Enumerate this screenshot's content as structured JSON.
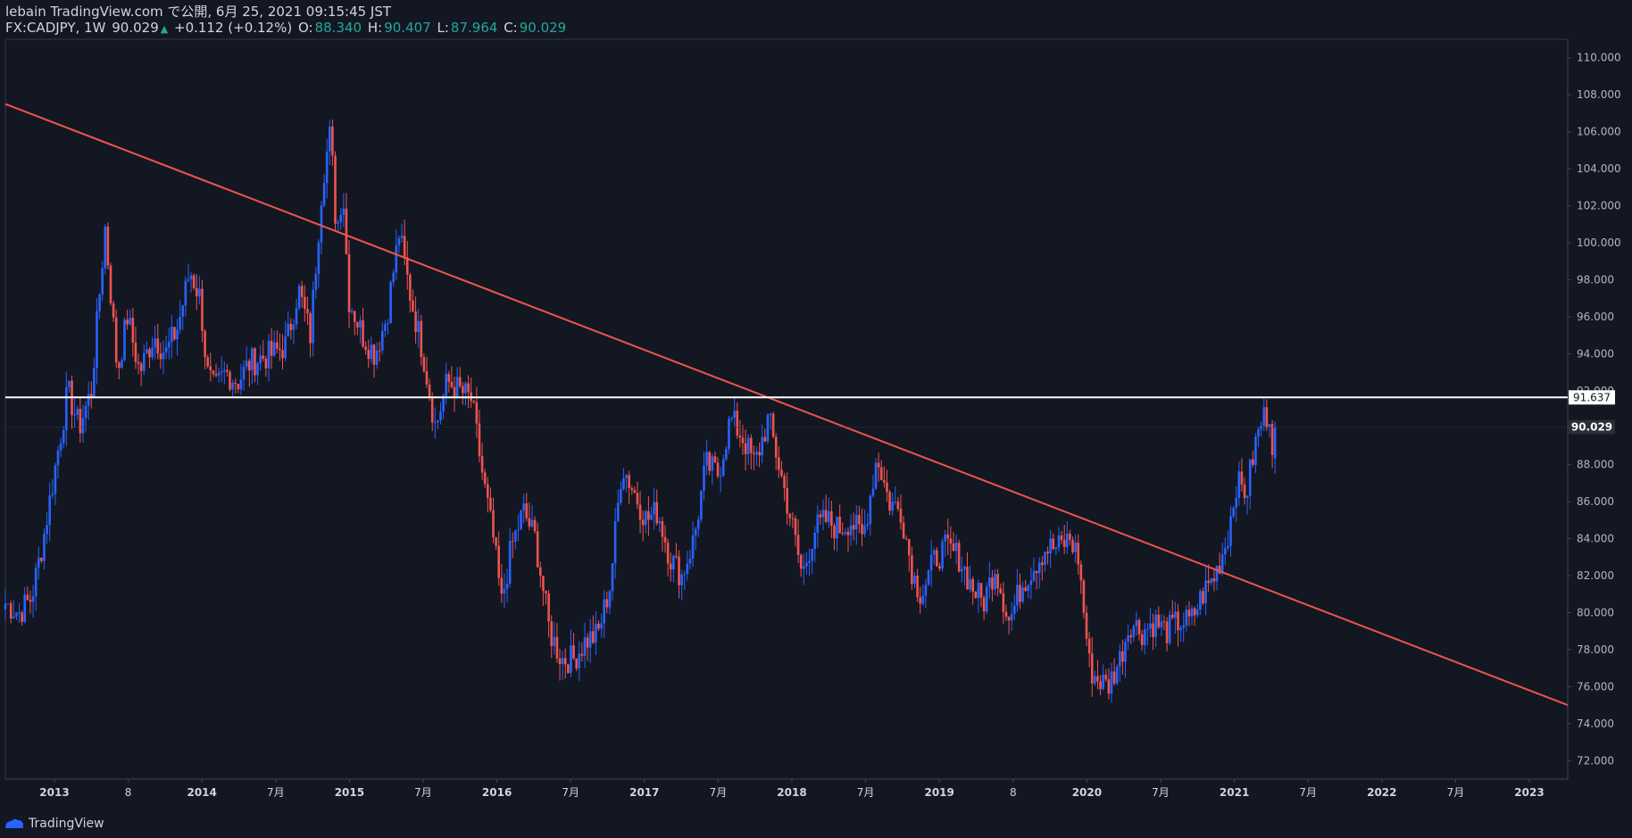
{
  "header": {
    "publish_line": "lebain TradingView.com で公開, 6月 25, 2021 09:15:45 JST",
    "symbol_interval": "FX:CADJPY, 1W",
    "last": "90.029",
    "change": "+0.112 (+0.12%)",
    "o_label": "O:",
    "o": "88.340",
    "h_label": "H:",
    "h": "90.407",
    "l_label": "L:",
    "l": "87.964",
    "c_label": "C:",
    "c": "90.029"
  },
  "footer": {
    "brand": "TradingView"
  },
  "colors": {
    "background": "#131722",
    "up": "#2962ff",
    "down": "#ef5350",
    "trendline": "#f05350",
    "hline": "#ffffff"
  },
  "chart_data": {
    "type": "candlestick",
    "yaxis_ticks": [
      "110.000",
      "108.000",
      "106.000",
      "104.000",
      "102.000",
      "100.000",
      "98.000",
      "96.000",
      "94.000",
      "92.000",
      "90.000",
      "88.000",
      "86.000",
      "84.000",
      "82.000",
      "80.000",
      "78.000",
      "76.000",
      "74.000",
      "72.000"
    ],
    "ylim": [
      71,
      111
    ],
    "xaxis_ticks": [
      "2013",
      "8",
      "2014",
      "7月",
      "2015",
      "7月",
      "2016",
      "7月",
      "2017",
      "7月",
      "2018",
      "7月",
      "2019",
      "8",
      "2020",
      "7月",
      "2021",
      "7月",
      "2022",
      "7月",
      "2023"
    ],
    "xlim": [
      "2012-09-10",
      "2023-06-30"
    ],
    "horizontal_line": {
      "value": 91.637,
      "label": "91.637"
    },
    "last_price_label": "90.029",
    "trendline": {
      "start": [
        "2012-09-10",
        107.5
      ],
      "end": [
        "2023-06-30",
        75.0
      ]
    },
    "close_path": [
      [
        "2012-09-10",
        80.5
      ],
      [
        "2012-10-15",
        80.0
      ],
      [
        "2012-11-15",
        80.8
      ],
      [
        "2012-12-15",
        84.0
      ],
      [
        "2013-01-15",
        88.0
      ],
      [
        "2013-02-15",
        92.0
      ],
      [
        "2013-03-15",
        90.0
      ],
      [
        "2013-04-15",
        92.0
      ],
      [
        "2013-05-20",
        100.8
      ],
      [
        "2013-06-20",
        93.0
      ],
      [
        "2013-07-15",
        96.0
      ],
      [
        "2013-08-15",
        93.0
      ],
      [
        "2013-09-20",
        95.0
      ],
      [
        "2013-10-20",
        94.0
      ],
      [
        "2013-11-20",
        95.5
      ],
      [
        "2013-12-20",
        98.5
      ],
      [
        "2014-01-15",
        97.0
      ],
      [
        "2014-02-01",
        93.0
      ],
      [
        "2014-02-20",
        92.0
      ],
      [
        "2014-03-20",
        93.0
      ],
      [
        "2014-04-20",
        92.5
      ],
      [
        "2014-05-20",
        93.5
      ],
      [
        "2014-06-20",
        93.8
      ],
      [
        "2014-07-20",
        94.0
      ],
      [
        "2014-08-20",
        94.5
      ],
      [
        "2014-09-20",
        97.5
      ],
      [
        "2014-10-20",
        95.0
      ],
      [
        "2014-11-20",
        103.5
      ],
      [
        "2014-12-10",
        106.0
      ],
      [
        "2014-12-25",
        100.5
      ],
      [
        "2015-01-10",
        103.0
      ],
      [
        "2015-01-25",
        97.0
      ],
      [
        "2015-03-01",
        95.0
      ],
      [
        "2015-04-01",
        94.0
      ],
      [
        "2015-05-01",
        96.0
      ],
      [
        "2015-06-01",
        100.5
      ],
      [
        "2015-07-01",
        97.0
      ],
      [
        "2015-08-01",
        94.0
      ],
      [
        "2015-09-01",
        90.0
      ],
      [
        "2015-10-01",
        92.5
      ],
      [
        "2015-11-01",
        92.0
      ],
      [
        "2015-12-01",
        91.5
      ],
      [
        "2016-01-01",
        87.0
      ],
      [
        "2016-01-25",
        84.0
      ],
      [
        "2016-02-15",
        80.5
      ],
      [
        "2016-03-10",
        83.5
      ],
      [
        "2016-04-10",
        85.5
      ],
      [
        "2016-05-10",
        84.0
      ],
      [
        "2016-06-15",
        79.0
      ],
      [
        "2016-07-15",
        77.5
      ],
      [
        "2016-08-15",
        77.5
      ],
      [
        "2016-09-15",
        78.5
      ],
      [
        "2016-10-15",
        78.8
      ],
      [
        "2016-11-15",
        81.5
      ],
      [
        "2016-12-15",
        88.0
      ],
      [
        "2017-01-15",
        86.5
      ],
      [
        "2017-02-15",
        85.0
      ],
      [
        "2017-03-15",
        85.5
      ],
      [
        "2017-04-15",
        83.0
      ],
      [
        "2017-05-15",
        82.0
      ],
      [
        "2017-06-15",
        84.0
      ],
      [
        "2017-07-15",
        88.0
      ],
      [
        "2017-08-15",
        87.5
      ],
      [
        "2017-09-15",
        90.5
      ],
      [
        "2017-10-15",
        89.5
      ],
      [
        "2017-11-15",
        88.0
      ],
      [
        "2017-12-20",
        90.5
      ],
      [
        "2018-01-20",
        87.5
      ],
      [
        "2018-02-15",
        85.0
      ],
      [
        "2018-03-15",
        82.0
      ],
      [
        "2018-04-15",
        84.5
      ],
      [
        "2018-05-15",
        85.0
      ],
      [
        "2018-06-15",
        84.5
      ],
      [
        "2018-07-15",
        85.0
      ],
      [
        "2018-08-15",
        84.0
      ],
      [
        "2018-09-20",
        88.5
      ],
      [
        "2018-10-20",
        86.0
      ],
      [
        "2018-11-20",
        85.5
      ],
      [
        "2018-12-20",
        82.0
      ],
      [
        "2019-01-10",
        81.0
      ],
      [
        "2019-02-15",
        83.0
      ],
      [
        "2019-03-15",
        83.5
      ],
      [
        "2019-04-15",
        83.0
      ],
      [
        "2019-05-15",
        81.5
      ],
      [
        "2019-06-15",
        80.5
      ],
      [
        "2019-07-15",
        82.5
      ],
      [
        "2019-08-20",
        79.5
      ],
      [
        "2019-09-20",
        81.5
      ],
      [
        "2019-10-20",
        82.5
      ],
      [
        "2019-11-20",
        83.5
      ],
      [
        "2019-12-20",
        83.5
      ],
      [
        "2020-01-20",
        84.0
      ],
      [
        "2020-02-10",
        83.0
      ],
      [
        "2020-03-10",
        77.0
      ],
      [
        "2020-03-25",
        76.5
      ],
      [
        "2020-04-25",
        76.0
      ],
      [
        "2020-05-25",
        77.5
      ],
      [
        "2020-06-20",
        79.5
      ],
      [
        "2020-07-20",
        79.0
      ],
      [
        "2020-08-20",
        79.5
      ],
      [
        "2020-09-20",
        79.0
      ],
      [
        "2020-10-20",
        79.5
      ],
      [
        "2020-11-20",
        79.5
      ],
      [
        "2020-12-20",
        81.0
      ],
      [
        "2021-01-20",
        82.0
      ],
      [
        "2021-02-20",
        84.0
      ],
      [
        "2021-03-15",
        87.0
      ],
      [
        "2021-04-10",
        86.5
      ],
      [
        "2021-05-01",
        89.0
      ],
      [
        "2021-05-20",
        90.5
      ],
      [
        "2021-06-08",
        90.8
      ],
      [
        "2021-06-18",
        88.3
      ],
      [
        "2021-06-25",
        90.029
      ]
    ]
  }
}
